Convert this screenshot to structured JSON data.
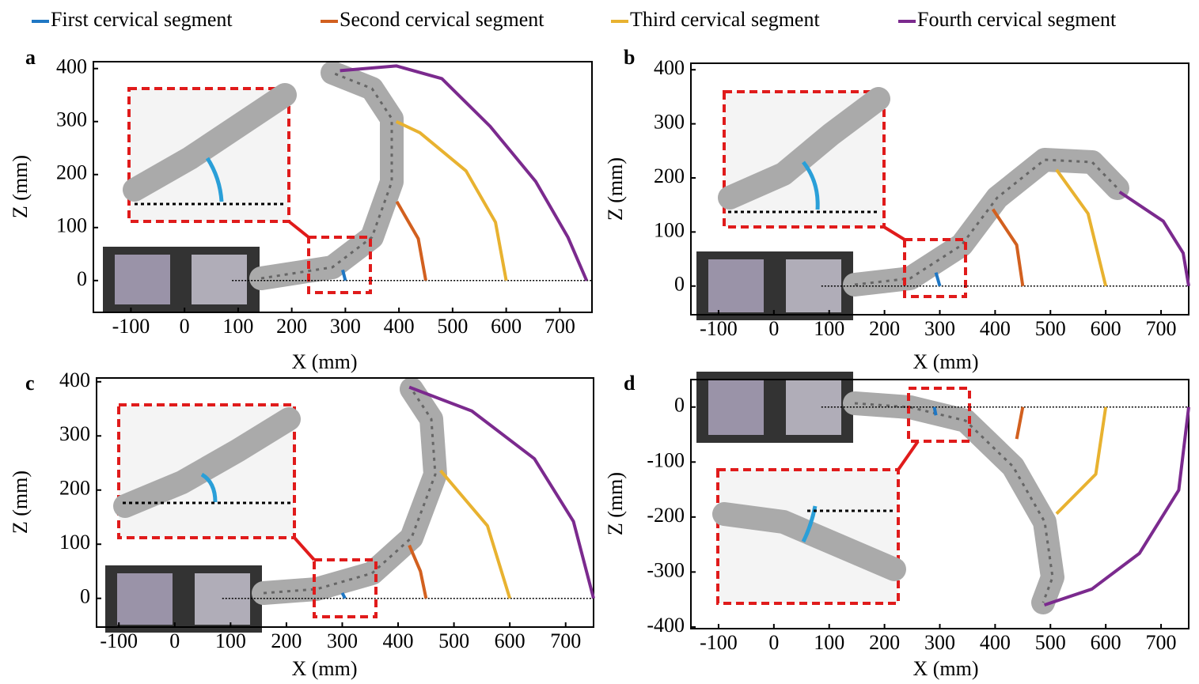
{
  "chart_data": [
    {
      "type": "line",
      "label": "a",
      "xlabel": "X (mm)",
      "ylabel": "Z (mm)",
      "xlim": [
        -170,
        760
      ],
      "ylim": [
        -60,
        413
      ],
      "xticks": [
        -100,
        0,
        100,
        200,
        300,
        400,
        500,
        600,
        700
      ],
      "yticks": [
        0,
        100,
        200,
        300,
        400
      ],
      "series": [
        {
          "name": "First cervical segment",
          "color": "#1f77c4",
          "x": [
            295,
            300
          ],
          "values": [
            20,
            0
          ]
        },
        {
          "name": "Second cervical segment",
          "color": "#d2601f",
          "x": [
            396,
            436,
            450
          ],
          "values": [
            149,
            79,
            0
          ]
        },
        {
          "name": "Third cervical segment",
          "color": "#e8b230",
          "x": [
            395,
            439,
            525,
            580,
            600
          ],
          "values": [
            300,
            279,
            207,
            110,
            0
          ]
        },
        {
          "name": "Fourth cervical segment",
          "color": "#7b2a8e",
          "x": [
            290,
            395,
            480,
            570,
            655,
            715,
            750
          ],
          "values": [
            396,
            405,
            381,
            291,
            187,
            82,
            0
          ]
        }
      ]
    },
    {
      "type": "line",
      "label": "b",
      "xlabel": "X (mm)",
      "ylabel": "Z (mm)",
      "xlim": [
        -150,
        750
      ],
      "ylim": [
        -53,
        412
      ],
      "xticks": [
        -100,
        0,
        100,
        200,
        300,
        400,
        500,
        600,
        700
      ],
      "yticks": [
        0,
        100,
        200,
        300,
        400
      ],
      "series": [
        {
          "color": "#1f77c4",
          "x": [
            293,
            300
          ],
          "values": [
            25,
            0
          ]
        },
        {
          "color": "#d2601f",
          "x": [
            396,
            439,
            450
          ],
          "values": [
            142,
            76,
            0
          ]
        },
        {
          "color": "#e8b230",
          "x": [
            511,
            568,
            600
          ],
          "values": [
            215,
            134,
            0
          ]
        },
        {
          "color": "#7b2a8e",
          "x": [
            625,
            704,
            740,
            750
          ],
          "values": [
            174,
            120,
            61,
            0
          ]
        }
      ]
    },
    {
      "type": "line",
      "label": "c",
      "xlabel": "X (mm)",
      "ylabel": "Z (mm)",
      "xlim": [
        -140,
        750
      ],
      "ylim": [
        -53,
        407
      ],
      "xticks": [
        -100,
        0,
        100,
        200,
        300,
        400,
        500,
        600,
        700
      ],
      "yticks": [
        0,
        100,
        200,
        300,
        400
      ],
      "series": [
        {
          "color": "#1f77c4",
          "x": [
            300,
            305
          ],
          "values": [
            10,
            0
          ]
        },
        {
          "color": "#d2601f",
          "x": [
            420,
            440,
            450
          ],
          "values": [
            98,
            50,
            0
          ]
        },
        {
          "color": "#e8b230",
          "x": [
            476,
            560,
            600
          ],
          "values": [
            236,
            134,
            0
          ]
        },
        {
          "color": "#7b2a8e",
          "x": [
            420,
            532,
            644,
            714,
            750
          ],
          "values": [
            390,
            346,
            258,
            142,
            0
          ]
        }
      ]
    },
    {
      "type": "line",
      "label": "d",
      "xlabel": "X (mm)",
      "ylabel": "Z (mm)",
      "xlim": [
        -150,
        750
      ],
      "ylim": [
        -403,
        50
      ],
      "xticks": [
        -100,
        0,
        100,
        200,
        300,
        400,
        500,
        600,
        700
      ],
      "yticks": [
        -400,
        -300,
        -200,
        -100,
        0
      ],
      "series": [
        {
          "color": "#1f77c4",
          "x": [
            290,
            293
          ],
          "values": [
            0,
            -15
          ]
        },
        {
          "color": "#d2601f",
          "x": [
            450,
            439
          ],
          "values": [
            0,
            -58
          ]
        },
        {
          "color": "#e8b230",
          "x": [
            600,
            582,
            511
          ],
          "values": [
            0,
            -122,
            -194
          ]
        },
        {
          "color": "#7b2a8e",
          "x": [
            750,
            732,
            661,
            575,
            489
          ],
          "values": [
            0,
            -151,
            -266,
            -331,
            -360
          ]
        }
      ]
    }
  ]
}
